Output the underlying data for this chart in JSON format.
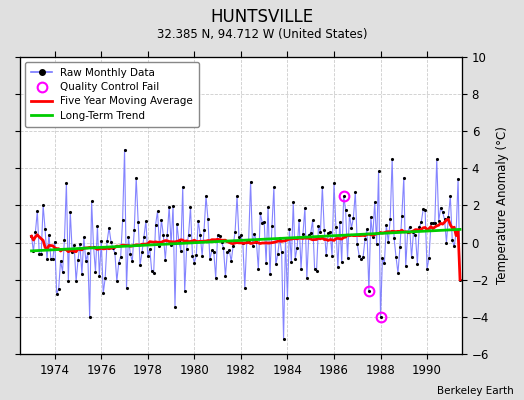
{
  "title": "HUNTSVILLE",
  "subtitle": "32.385 N, 94.712 W (United States)",
  "ylabel": "Temperature Anomaly (°C)",
  "credit": "Berkeley Earth",
  "xlim": [
    1972.5,
    1991.5
  ],
  "ylim": [
    -6,
    10
  ],
  "yticks": [
    -6,
    -4,
    -2,
    0,
    2,
    4,
    6,
    8,
    10
  ],
  "xticks": [
    1974,
    1976,
    1978,
    1980,
    1982,
    1984,
    1986,
    1988,
    1990
  ],
  "bg_color": "#e0e0e0",
  "plot_bg_color": "#ffffff",
  "raw_color": "#7777ff",
  "ma_color": "#ff0000",
  "trend_color": "#00cc00",
  "qc_color": "#ff00ff",
  "seed": 42
}
